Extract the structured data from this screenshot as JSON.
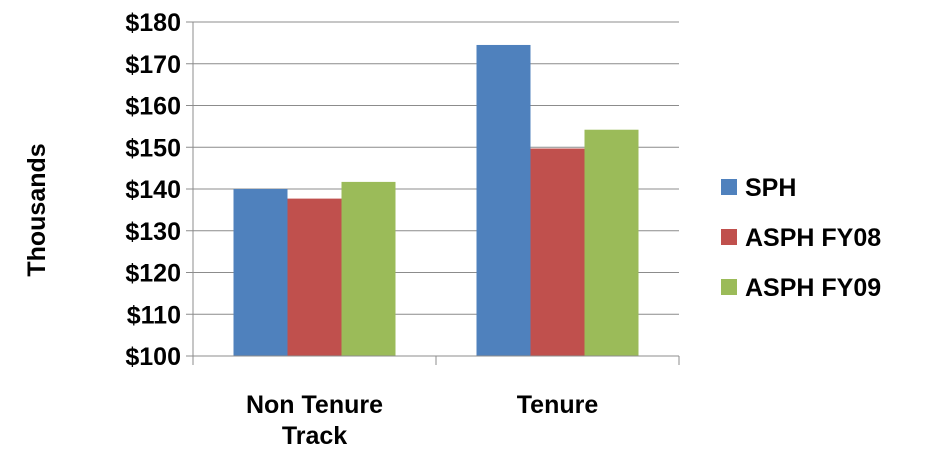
{
  "chart_data": {
    "type": "bar",
    "title": "",
    "xlabel": "",
    "ylabel": "Thousands",
    "categories": [
      "Non Tenure Track",
      "Tenure"
    ],
    "category_lines": [
      [
        "Non Tenure",
        "Track"
      ],
      [
        "Tenure"
      ]
    ],
    "ylim": [
      100,
      180
    ],
    "yticks": [
      100,
      110,
      120,
      130,
      140,
      150,
      160,
      170,
      180
    ],
    "ytick_labels": [
      "$100",
      "$110",
      "$120",
      "$130",
      "$140",
      "$150",
      "$160",
      "$170",
      "$180"
    ],
    "grid": true,
    "legend_position": "right",
    "series": [
      {
        "name": "SPH",
        "color": "#4F81BD",
        "values": [
          140,
          174.5
        ]
      },
      {
        "name": "ASPH FY08",
        "color": "#C0504D",
        "values": [
          137.7,
          149.7
        ]
      },
      {
        "name": "ASPH FY09",
        "color": "#9BBB59",
        "values": [
          141.7,
          154.2
        ]
      }
    ]
  }
}
